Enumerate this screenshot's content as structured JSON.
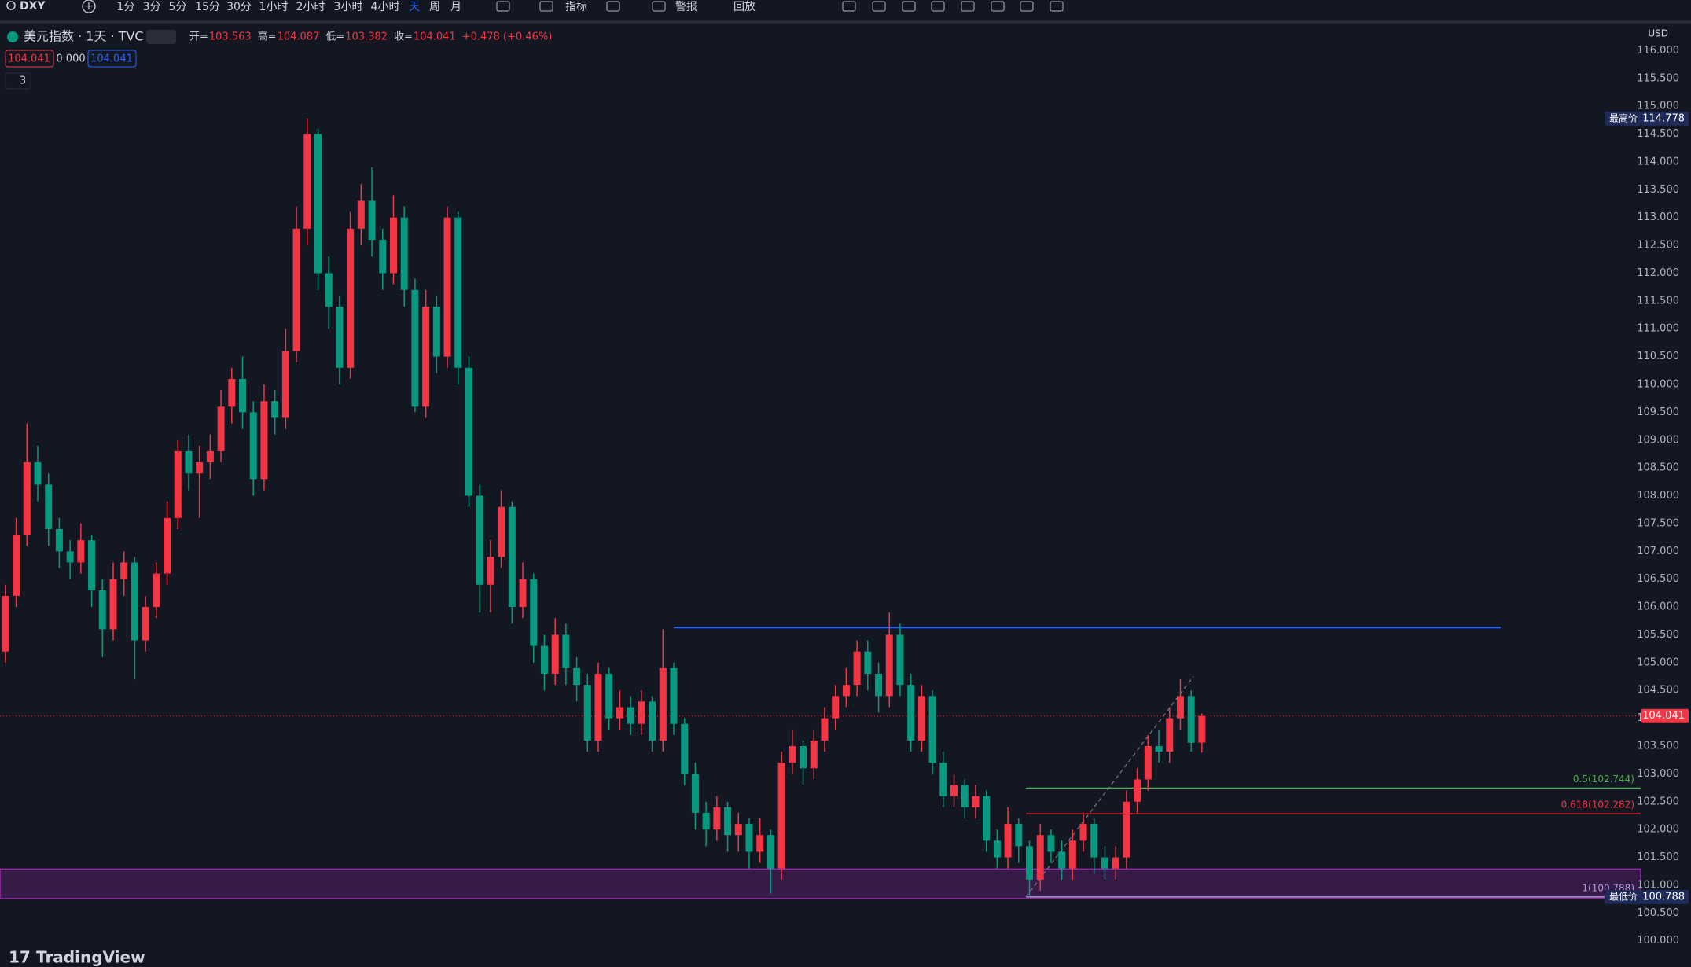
{
  "toolbar": {
    "symbol": "DXY",
    "intervals": [
      "1分",
      "3分",
      "5分",
      "15分",
      "30分",
      "1小时",
      "2小时",
      "3小时",
      "4小时",
      "天",
      "周",
      "月"
    ],
    "active_interval": 9,
    "buttons": [
      "指标",
      "警报",
      "回放"
    ]
  },
  "legend": {
    "title": "美元指数 · 1天 · TVC",
    "open": "开=",
    "high": "高=",
    "low": "低=",
    "close": "收=",
    "change": "+0.478 (+0.46%)",
    "bid": "104.041",
    "spread": "0.000",
    "ask": "104.041",
    "indicators": "3"
  },
  "currency": "USD",
  "logo": "TradingView",
  "chart_data": {
    "type": "candlestick",
    "up_color": "#f23645",
    "down_color": "#089981",
    "ylim": [
      99.6,
      116.5
    ],
    "yticks": [
      {
        "value": 100,
        "label": "100.000"
      },
      {
        "value": 100.5,
        "label": "100.500"
      },
      {
        "value": 101,
        "label": "101.000"
      },
      {
        "value": 101.5,
        "label": "101.500"
      },
      {
        "value": 102,
        "label": "102.000"
      },
      {
        "value": 102.5,
        "label": "102.500"
      },
      {
        "value": 103,
        "label": "103.000"
      },
      {
        "value": 103.5,
        "label": "103.500"
      },
      {
        "value": 104,
        "label": "104.000"
      },
      {
        "value": 104.5,
        "label": "104.500"
      },
      {
        "value": 105,
        "label": "105.000"
      },
      {
        "value": 105.5,
        "label": "105.500"
      },
      {
        "value": 106,
        "label": "106.000"
      },
      {
        "value": 106.5,
        "label": "106.500"
      },
      {
        "value": 107,
        "label": "107.000"
      },
      {
        "value": 107.5,
        "label": "107.500"
      },
      {
        "value": 108,
        "label": "108.000"
      },
      {
        "value": 108.5,
        "label": "108.500"
      },
      {
        "value": 109,
        "label": "109.000"
      },
      {
        "value": 109.5,
        "label": "109.500"
      },
      {
        "value": 110,
        "label": "110.000"
      },
      {
        "value": 110.5,
        "label": "110.500"
      },
      {
        "value": 111,
        "label": "111.000"
      },
      {
        "value": 111.5,
        "label": "111.500"
      },
      {
        "value": 112,
        "label": "112.000"
      },
      {
        "value": 112.5,
        "label": "112.500"
      },
      {
        "value": 113,
        "label": "113.000"
      },
      {
        "value": 113.5,
        "label": "113.500"
      },
      {
        "value": 114,
        "label": "114.000"
      },
      {
        "value": 114.5,
        "label": "114.500"
      },
      {
        "value": 115,
        "label": "115.000"
      },
      {
        "value": 115.5,
        "label": "115.500"
      },
      {
        "value": 116,
        "label": "116.000"
      }
    ],
    "grid": false,
    "ohlc": [
      [
        105.2,
        106.4,
        105.0,
        106.2
      ],
      [
        106.2,
        107.6,
        106.0,
        107.3
      ],
      [
        107.3,
        109.3,
        107.1,
        108.6
      ],
      [
        108.6,
        108.9,
        107.9,
        108.2
      ],
      [
        108.2,
        108.4,
        107.1,
        107.4
      ],
      [
        107.4,
        107.6,
        106.7,
        107.0
      ],
      [
        107.0,
        107.2,
        106.5,
        106.8
      ],
      [
        106.8,
        107.5,
        106.6,
        107.2
      ],
      [
        107.2,
        107.3,
        106.0,
        106.3
      ],
      [
        106.3,
        106.5,
        105.1,
        105.6
      ],
      [
        105.6,
        106.8,
        105.4,
        106.5
      ],
      [
        106.5,
        107.0,
        106.2,
        106.8
      ],
      [
        106.8,
        106.9,
        104.7,
        105.4
      ],
      [
        105.4,
        106.2,
        105.2,
        106.0
      ],
      [
        106.0,
        106.8,
        105.8,
        106.6
      ],
      [
        106.6,
        107.9,
        106.4,
        107.6
      ],
      [
        107.6,
        109.0,
        107.4,
        108.8
      ],
      [
        108.8,
        109.1,
        108.1,
        108.4
      ],
      [
        108.4,
        108.9,
        107.6,
        108.6
      ],
      [
        108.6,
        109.1,
        108.3,
        108.8
      ],
      [
        108.8,
        109.9,
        108.6,
        109.6
      ],
      [
        109.6,
        110.3,
        109.3,
        110.1
      ],
      [
        110.1,
        110.5,
        109.2,
        109.5
      ],
      [
        109.5,
        109.7,
        108.0,
        108.3
      ],
      [
        108.3,
        110.0,
        108.1,
        109.7
      ],
      [
        109.7,
        109.9,
        109.1,
        109.4
      ],
      [
        109.4,
        111.0,
        109.2,
        110.6
      ],
      [
        110.6,
        113.2,
        110.4,
        112.8
      ],
      [
        112.8,
        114.778,
        112.5,
        114.5
      ],
      [
        114.5,
        114.6,
        111.7,
        112.0
      ],
      [
        112.0,
        112.3,
        111.0,
        111.4
      ],
      [
        111.4,
        111.6,
        110.0,
        110.3
      ],
      [
        110.3,
        113.1,
        110.1,
        112.8
      ],
      [
        112.8,
        113.6,
        112.5,
        113.3
      ],
      [
        113.3,
        113.9,
        112.3,
        112.6
      ],
      [
        112.6,
        112.8,
        111.7,
        112.0
      ],
      [
        112.0,
        113.4,
        111.8,
        113.0
      ],
      [
        113.0,
        113.2,
        111.4,
        111.7
      ],
      [
        111.7,
        111.9,
        109.5,
        109.6
      ],
      [
        109.6,
        111.7,
        109.4,
        111.4
      ],
      [
        111.4,
        111.6,
        110.2,
        110.5
      ],
      [
        110.5,
        113.2,
        110.3,
        113.0
      ],
      [
        113.0,
        113.1,
        110.0,
        110.3
      ],
      [
        110.3,
        110.5,
        107.8,
        108.0
      ],
      [
        108.0,
        108.2,
        105.9,
        106.4
      ],
      [
        106.4,
        107.2,
        105.9,
        106.9
      ],
      [
        106.9,
        108.1,
        106.7,
        107.8
      ],
      [
        107.8,
        107.9,
        105.7,
        106.0
      ],
      [
        106.0,
        106.8,
        105.8,
        106.5
      ],
      [
        106.5,
        106.6,
        105.0,
        105.3
      ],
      [
        105.3,
        105.5,
        104.5,
        104.8
      ],
      [
        104.8,
        105.8,
        104.6,
        105.5
      ],
      [
        105.5,
        105.7,
        104.6,
        104.9
      ],
      [
        104.9,
        105.1,
        104.3,
        104.6
      ],
      [
        104.6,
        104.8,
        103.4,
        103.6
      ],
      [
        103.6,
        105.0,
        103.4,
        104.8
      ],
      [
        104.8,
        104.9,
        103.8,
        104.0
      ],
      [
        104.0,
        104.5,
        103.8,
        104.2
      ],
      [
        104.2,
        104.4,
        103.7,
        103.9
      ],
      [
        103.9,
        104.5,
        103.7,
        104.3
      ],
      [
        104.3,
        104.4,
        103.4,
        103.6
      ],
      [
        103.6,
        105.6,
        103.4,
        104.9
      ],
      [
        104.9,
        105.0,
        103.7,
        103.9
      ],
      [
        103.9,
        104.0,
        102.8,
        103.0
      ],
      [
        103.0,
        103.2,
        102.0,
        102.3
      ],
      [
        102.3,
        102.5,
        101.7,
        102.0
      ],
      [
        102.0,
        102.6,
        101.8,
        102.4
      ],
      [
        102.4,
        102.5,
        101.6,
        101.9
      ],
      [
        101.9,
        102.3,
        101.6,
        102.1
      ],
      [
        102.1,
        102.2,
        101.3,
        101.6
      ],
      [
        101.6,
        102.2,
        101.4,
        101.9
      ],
      [
        101.9,
        102.0,
        100.85,
        101.3
      ],
      [
        101.3,
        103.4,
        101.1,
        103.2
      ],
      [
        103.2,
        103.8,
        103.0,
        103.5
      ],
      [
        103.5,
        103.6,
        102.8,
        103.1
      ],
      [
        103.1,
        103.8,
        102.9,
        103.6
      ],
      [
        103.6,
        104.2,
        103.4,
        104.0
      ],
      [
        104.0,
        104.6,
        103.8,
        104.4
      ],
      [
        104.4,
        104.9,
        104.2,
        104.6
      ],
      [
        104.6,
        105.4,
        104.4,
        105.2
      ],
      [
        105.2,
        105.4,
        104.5,
        104.8
      ],
      [
        104.8,
        105.0,
        104.1,
        104.4
      ],
      [
        104.4,
        105.9,
        104.2,
        105.5
      ],
      [
        105.5,
        105.7,
        104.4,
        104.6
      ],
      [
        104.6,
        104.8,
        103.4,
        103.6
      ],
      [
        103.6,
        104.6,
        103.4,
        104.4
      ],
      [
        104.4,
        104.5,
        103.0,
        103.2
      ],
      [
        103.2,
        103.4,
        102.4,
        102.6
      ],
      [
        102.6,
        103.0,
        102.4,
        102.8
      ],
      [
        102.8,
        102.9,
        102.2,
        102.4
      ],
      [
        102.4,
        102.8,
        102.2,
        102.6
      ],
      [
        102.6,
        102.7,
        101.6,
        101.8
      ],
      [
        101.8,
        102.0,
        101.3,
        101.5
      ],
      [
        101.5,
        102.4,
        101.3,
        102.1
      ],
      [
        102.1,
        102.2,
        101.4,
        101.7
      ],
      [
        101.7,
        101.8,
        100.788,
        101.1
      ],
      [
        101.1,
        102.1,
        100.9,
        101.9
      ],
      [
        101.9,
        102.0,
        101.4,
        101.6
      ],
      [
        101.6,
        101.8,
        101.1,
        101.3
      ],
      [
        101.3,
        102.0,
        101.1,
        101.8
      ],
      [
        101.8,
        102.3,
        101.6,
        102.1
      ],
      [
        102.1,
        102.2,
        101.2,
        101.5
      ],
      [
        101.5,
        101.7,
        101.1,
        101.3
      ],
      [
        101.3,
        101.7,
        101.1,
        101.5
      ],
      [
        101.5,
        102.7,
        101.3,
        102.5
      ],
      [
        102.5,
        103.1,
        102.3,
        102.9
      ],
      [
        102.9,
        103.7,
        102.7,
        103.5
      ],
      [
        103.5,
        103.8,
        103.2,
        103.4
      ],
      [
        103.4,
        104.2,
        103.2,
        104.0
      ],
      [
        104.0,
        104.7,
        103.8,
        104.4
      ],
      [
        104.4,
        104.5,
        103.4,
        103.56
      ],
      [
        103.563,
        104.087,
        103.382,
        104.041
      ]
    ],
    "horizontal_line": {
      "price": 105.63,
      "color": "#2962ff"
    },
    "zone": {
      "from": 100.76,
      "to": 101.29,
      "color": "#9c27b0"
    },
    "trend_line": {
      "from": 100.788,
      "to": 104.75
    },
    "fib_levels": [
      {
        "label": "0.5(102.744)",
        "price": 102.744,
        "color": "#4caf50"
      },
      {
        "label": "0.618(102.282)",
        "price": 102.282,
        "color": "#f23645"
      },
      {
        "label": "1(100.788)",
        "price": 100.788,
        "color": "#b39ddb"
      }
    ],
    "high_label": "最高价",
    "low_label": "最低价"
  }
}
